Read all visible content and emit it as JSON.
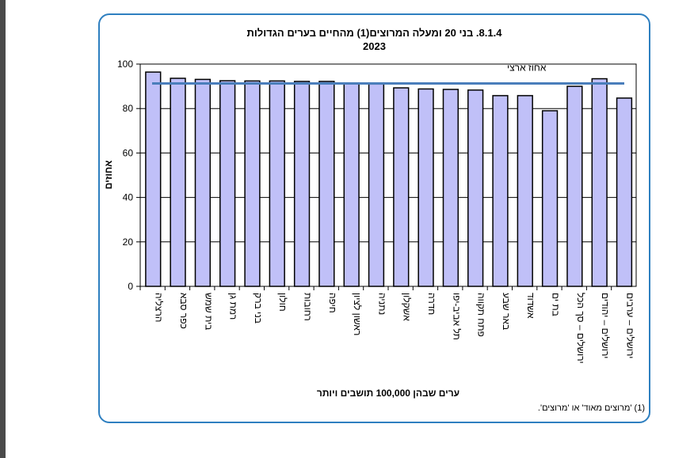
{
  "chart_data": {
    "type": "bar",
    "title": "8.1.4. בני 20 ומעלה המרוצים(1) מהחיים בערים הגדולות",
    "subtitle": "2023",
    "xlabel": "ערים שבהן 100,000 תושבים ויותר",
    "ylabel": "אחוזים",
    "ylim": [
      0,
      100
    ],
    "yticks": [
      0,
      20,
      40,
      60,
      80,
      100
    ],
    "grid": true,
    "categories": [
      "הרצליה",
      "כפר סבא",
      "בית שמש",
      "רמת גן",
      "בני ברק",
      "חולון",
      "רחובות",
      "חיפה",
      "ראשון לציון",
      "נתניה",
      "אשקלון",
      "חדרה",
      "תל אביב-יפו",
      "פתח תקווה",
      "באר שבע",
      "אשדוד",
      "בת ים",
      "ירושלים – סך הכל",
      "ירושלים – יהודים",
      "ירושלים – ערבים"
    ],
    "values": [
      96.4,
      93.6,
      93.1,
      92.5,
      92.4,
      92.4,
      92.2,
      92.2,
      91.2,
      91.0,
      89.3,
      88.8,
      88.6,
      88.3,
      85.8,
      85.8,
      79.0,
      90.0,
      93.4,
      84.7
    ],
    "reference_line": {
      "label": "אחוז ארצי",
      "value": 91.3
    },
    "footnote": "(1) 'מרוצים מאוד' או 'מרוצים'.",
    "colors": {
      "bar": "#c0c0f8",
      "line": "#4a7ebb",
      "frame": "#2e7fc0"
    }
  }
}
